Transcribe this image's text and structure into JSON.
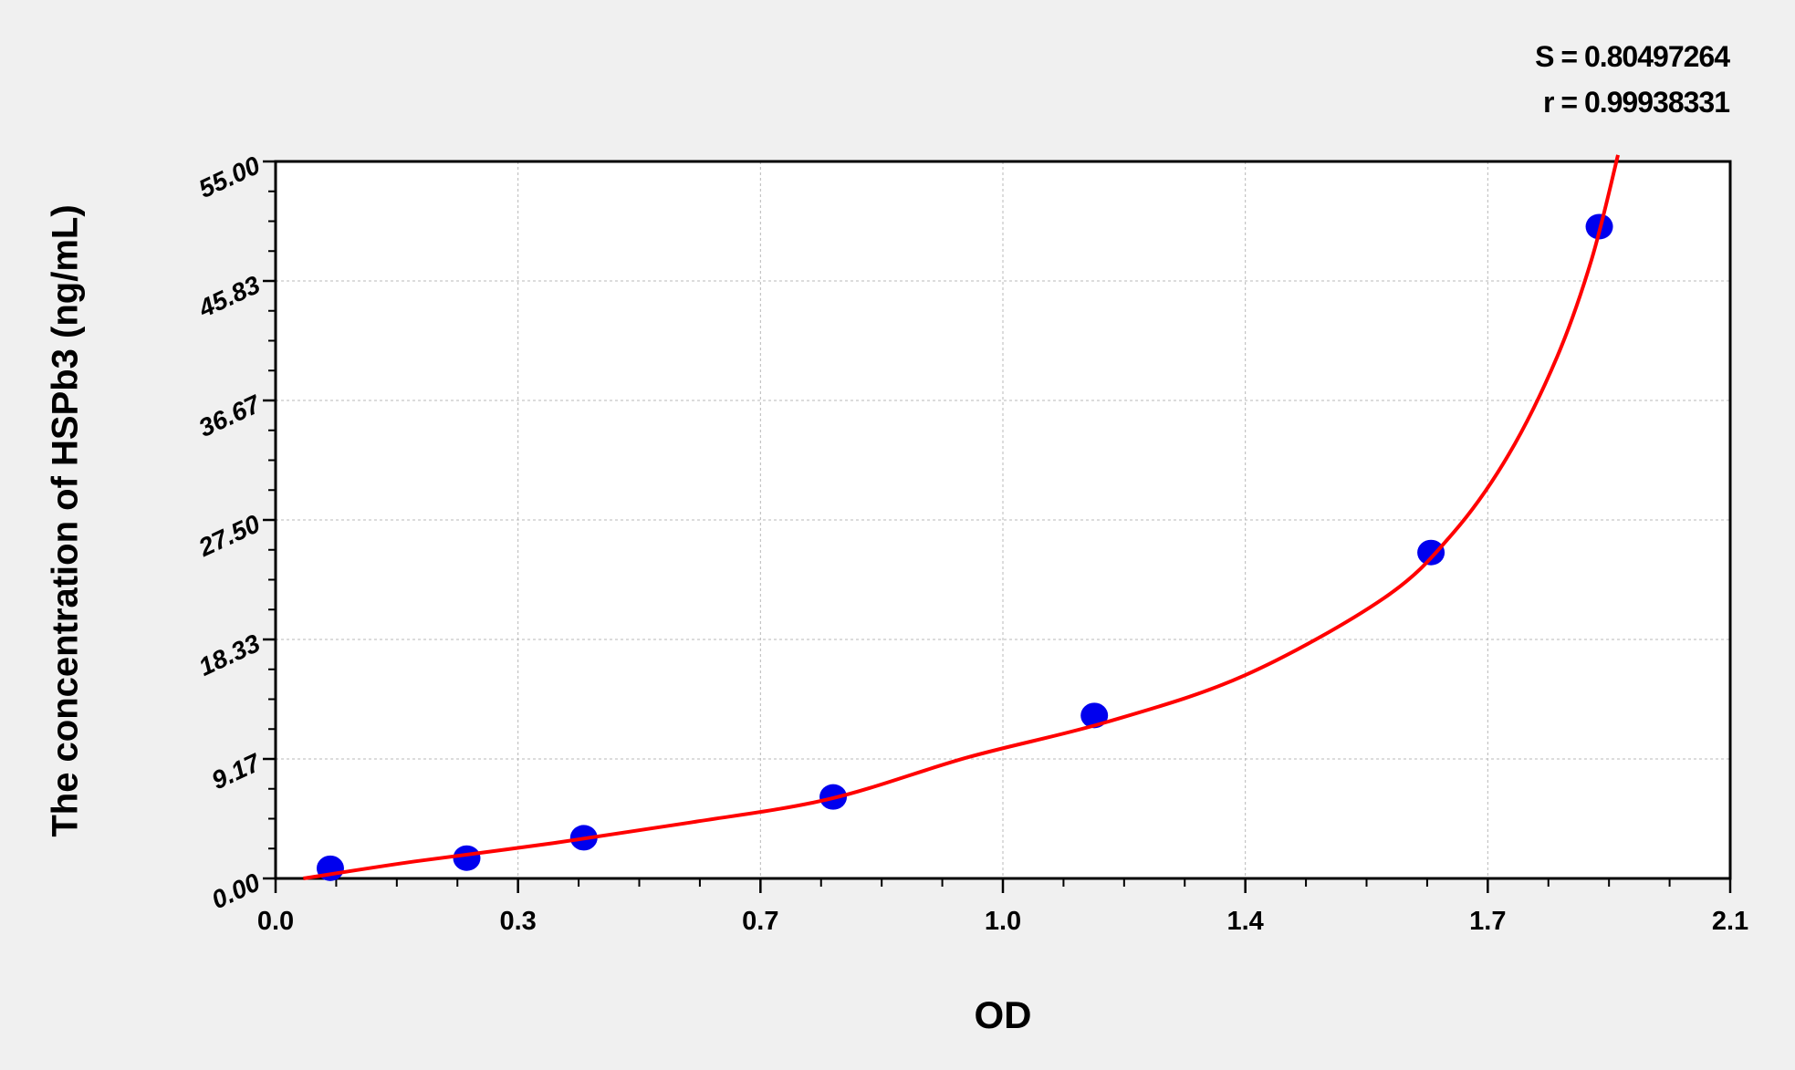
{
  "chart_data": {
    "type": "scatter",
    "xlabel": "OD",
    "ylabel": "The concentration of HSPb3 (ng/mL)",
    "xlim": [
      0,
      2.1
    ],
    "ylim": [
      0,
      55
    ],
    "x_ticks": [
      0,
      0.35,
      0.7,
      1.05,
      1.4,
      1.75,
      2.1
    ],
    "x_tick_labels": [
      "0.0",
      "0.3",
      "0.7",
      "1.0",
      "1.4",
      "1.7",
      "2.1"
    ],
    "y_ticks": [
      0,
      9.1667,
      18.333,
      27.5,
      36.667,
      45.833,
      55
    ],
    "y_tick_labels": [
      "0.00",
      "9.17",
      "18.33",
      "27.50",
      "36.67",
      "45.83",
      "55.00"
    ],
    "grid": true,
    "annotations": [
      "S = 0.80497264",
      "r = 0.99938331"
    ],
    "points": {
      "x": [
        0.079,
        0.276,
        0.445,
        0.805,
        1.182,
        1.668,
        1.911
      ],
      "y": [
        0.78,
        1.56,
        3.12,
        6.25,
        12.5,
        25,
        50
      ],
      "color": "#0000ee"
    },
    "fit_curve": {
      "color": "#ff0000",
      "x": [
        0.04,
        0.2,
        0.4,
        0.6,
        0.8,
        1.0,
        1.2,
        1.4,
        1.6,
        1.7,
        1.78,
        1.85,
        1.9,
        1.938
      ],
      "y": [
        0,
        1.3,
        2.7,
        4.3,
        6.1,
        9.3,
        12.0,
        15.6,
        21.5,
        26.5,
        32.5,
        40.0,
        47.5,
        55.5
      ]
    }
  }
}
